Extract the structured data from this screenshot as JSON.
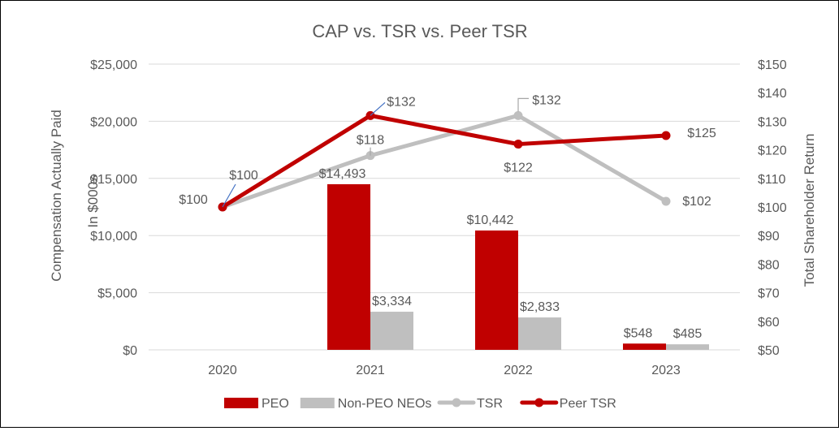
{
  "chart_data": {
    "type": "bar+line",
    "title": "CAP vs. TSR vs. Peer TSR",
    "categories": [
      "2020",
      "2021",
      "2022",
      "2023"
    ],
    "y_left": {
      "label_lines": [
        "Compensation Actually Paid",
        "In $000s"
      ],
      "range": [
        0,
        25000
      ],
      "ticks": [
        0,
        5000,
        10000,
        15000,
        20000,
        25000
      ],
      "tick_labels": [
        "$0",
        "$5,000",
        "$10,000",
        "$15,000",
        "$20,000",
        "$25,000"
      ]
    },
    "y_right": {
      "label": "Total Shareholder Return",
      "range": [
        50,
        150
      ],
      "ticks": [
        50,
        60,
        70,
        80,
        90,
        100,
        110,
        120,
        130,
        140,
        150
      ],
      "tick_labels": [
        "$50",
        "$60",
        "$70",
        "$80",
        "$90",
        "$100",
        "$110",
        "$120",
        "$130",
        "$140",
        "$150"
      ]
    },
    "grid": true,
    "legend_position": "bottom",
    "bar_series": [
      {
        "name": "PEO",
        "color": "#C00000",
        "values": [
          null,
          14493,
          10442,
          548
        ],
        "labels": [
          "",
          "$14,493",
          "$10,442",
          "$548"
        ]
      },
      {
        "name": "Non-PEO NEOs",
        "color": "#BFBFBF",
        "values": [
          null,
          3334,
          2833,
          485
        ],
        "labels": [
          "",
          "$3,334",
          "$2,833",
          "$485"
        ]
      }
    ],
    "line_series": [
      {
        "name": "TSR",
        "color": "#BFBFBF",
        "values": [
          100,
          118,
          132,
          102
        ],
        "labels": [
          "$100",
          "$118",
          "$132",
          "$102"
        ]
      },
      {
        "name": "Peer TSR",
        "color": "#C00000",
        "values": [
          100,
          132,
          122,
          125
        ],
        "labels": [
          "$100",
          "$132",
          "$122",
          "$125"
        ]
      }
    ]
  }
}
